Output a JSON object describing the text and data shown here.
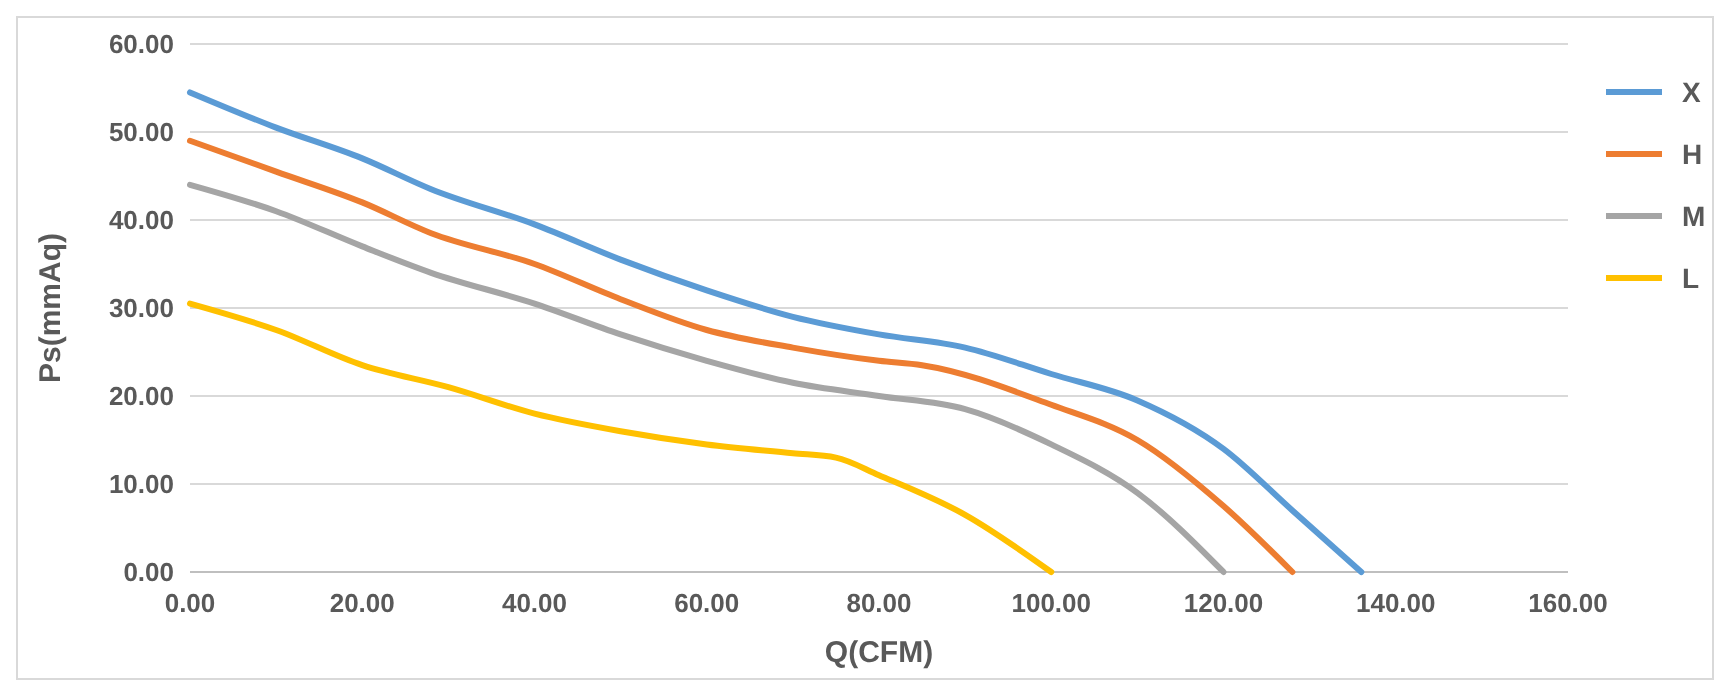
{
  "chart_data": {
    "type": "line",
    "xlabel": "Q(CFM)",
    "ylabel": "Ps(mmAq)",
    "xlim": [
      0,
      160
    ],
    "ylim": [
      0,
      60
    ],
    "xticks": [
      {
        "value": 0,
        "label": "0.00"
      },
      {
        "value": 20,
        "label": "20.00"
      },
      {
        "value": 40,
        "label": "40.00"
      },
      {
        "value": 60,
        "label": "60.00"
      },
      {
        "value": 80,
        "label": "80.00"
      },
      {
        "value": 100,
        "label": "100.00"
      },
      {
        "value": 120,
        "label": "120.00"
      },
      {
        "value": 140,
        "label": "140.00"
      },
      {
        "value": 160,
        "label": "160.00"
      }
    ],
    "yticks": [
      {
        "value": 0,
        "label": "0.00"
      },
      {
        "value": 10,
        "label": "10.00"
      },
      {
        "value": 20,
        "label": "20.00"
      },
      {
        "value": 30,
        "label": "30.00"
      },
      {
        "value": 40,
        "label": "40.00"
      },
      {
        "value": 50,
        "label": "50.00"
      },
      {
        "value": 60,
        "label": "60.00"
      }
    ],
    "grid": "y",
    "legend": "right",
    "marker": "none",
    "line_style": "solid",
    "series": [
      {
        "name": "X",
        "color": "#5b9bd5",
        "x": [
          0,
          10,
          20,
          28,
          40,
          50,
          60,
          70,
          80,
          90,
          100,
          110,
          120,
          128,
          136
        ],
        "values": [
          54.5,
          50.5,
          47,
          43.5,
          39.5,
          35.5,
          32,
          29,
          27,
          25.5,
          22.5,
          19.5,
          14,
          7,
          0
        ]
      },
      {
        "name": "H",
        "color": "#ed7d31",
        "x": [
          0,
          10,
          20,
          28,
          40,
          50,
          60,
          70,
          80,
          85,
          100,
          110,
          120,
          128
        ],
        "values": [
          49,
          45.5,
          42,
          38.5,
          35,
          31,
          27.5,
          25.5,
          24,
          23.5,
          19,
          15,
          7.5,
          0
        ]
      },
      {
        "name": "M",
        "color": "#a5a5a5",
        "x": [
          0,
          10,
          20,
          28,
          40,
          50,
          60,
          70,
          80,
          90,
          100,
          110,
          120
        ],
        "values": [
          44,
          41,
          37,
          34,
          30.5,
          27,
          24,
          21.5,
          20,
          18.5,
          14.5,
          9,
          0
        ]
      },
      {
        "name": "L",
        "color": "#ffc000",
        "x": [
          0,
          10,
          20,
          30,
          40,
          50,
          60,
          70,
          75,
          80,
          90,
          100
        ],
        "values": [
          30.5,
          27.5,
          23.5,
          21,
          18,
          16,
          14.5,
          13.5,
          13,
          11,
          6.5,
          0
        ]
      }
    ]
  }
}
